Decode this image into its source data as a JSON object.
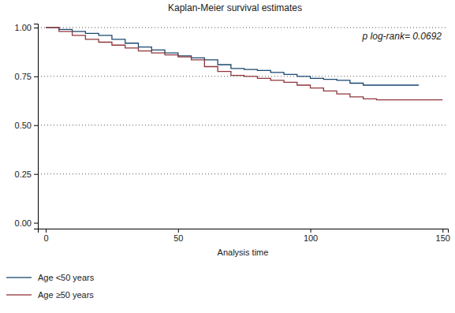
{
  "chart_data": {
    "type": "line",
    "title": "Kaplan-Meier survival estimates",
    "x_label": "Analysis time",
    "annotation": "p log-rank= 0.0692",
    "x": [
      0,
      5,
      10,
      15,
      20,
      25,
      30,
      35,
      40,
      45,
      50,
      55,
      60,
      65,
      70,
      75,
      80,
      85,
      90,
      95,
      100,
      105,
      110,
      115,
      120,
      125,
      130,
      135,
      140,
      141,
      145,
      150
    ],
    "series": [
      {
        "name": "Age <50 years",
        "color": "#1a476f",
        "line_style": "step",
        "values": [
          1.0,
          0.99,
          0.98,
          0.97,
          0.96,
          0.94,
          0.92,
          0.9,
          0.885,
          0.87,
          0.855,
          0.845,
          0.835,
          0.81,
          0.79,
          0.785,
          0.78,
          0.77,
          0.76,
          0.75,
          0.74,
          0.735,
          0.73,
          0.715,
          0.705,
          0.705,
          0.705,
          0.705,
          0.705,
          0.705,
          null,
          null
        ]
      },
      {
        "name": "Age ≥50 years",
        "color": "#90353b",
        "line_style": "step",
        "values": [
          1.0,
          0.98,
          0.96,
          0.94,
          0.925,
          0.91,
          0.895,
          0.88,
          0.87,
          0.86,
          0.85,
          0.835,
          0.8,
          0.775,
          0.755,
          0.75,
          0.74,
          0.73,
          0.72,
          0.705,
          0.69,
          0.675,
          0.66,
          0.645,
          0.635,
          0.63,
          0.63,
          0.63,
          0.63,
          0.63,
          0.63,
          0.63
        ]
      }
    ],
    "xlim": [
      -3,
      152
    ],
    "xticks": [
      0,
      50,
      100,
      150
    ],
    "ylim": [
      -0.03,
      1.02
    ],
    "yticks": [
      {
        "value": 0,
        "label": "0.00"
      },
      {
        "value": 0.25,
        "label": "0.25"
      },
      {
        "value": 0.5,
        "label": "0.50"
      },
      {
        "value": 0.75,
        "label": "0.75"
      },
      {
        "value": 1,
        "label": "1.00"
      }
    ],
    "grid": true,
    "legend": "bottom"
  }
}
